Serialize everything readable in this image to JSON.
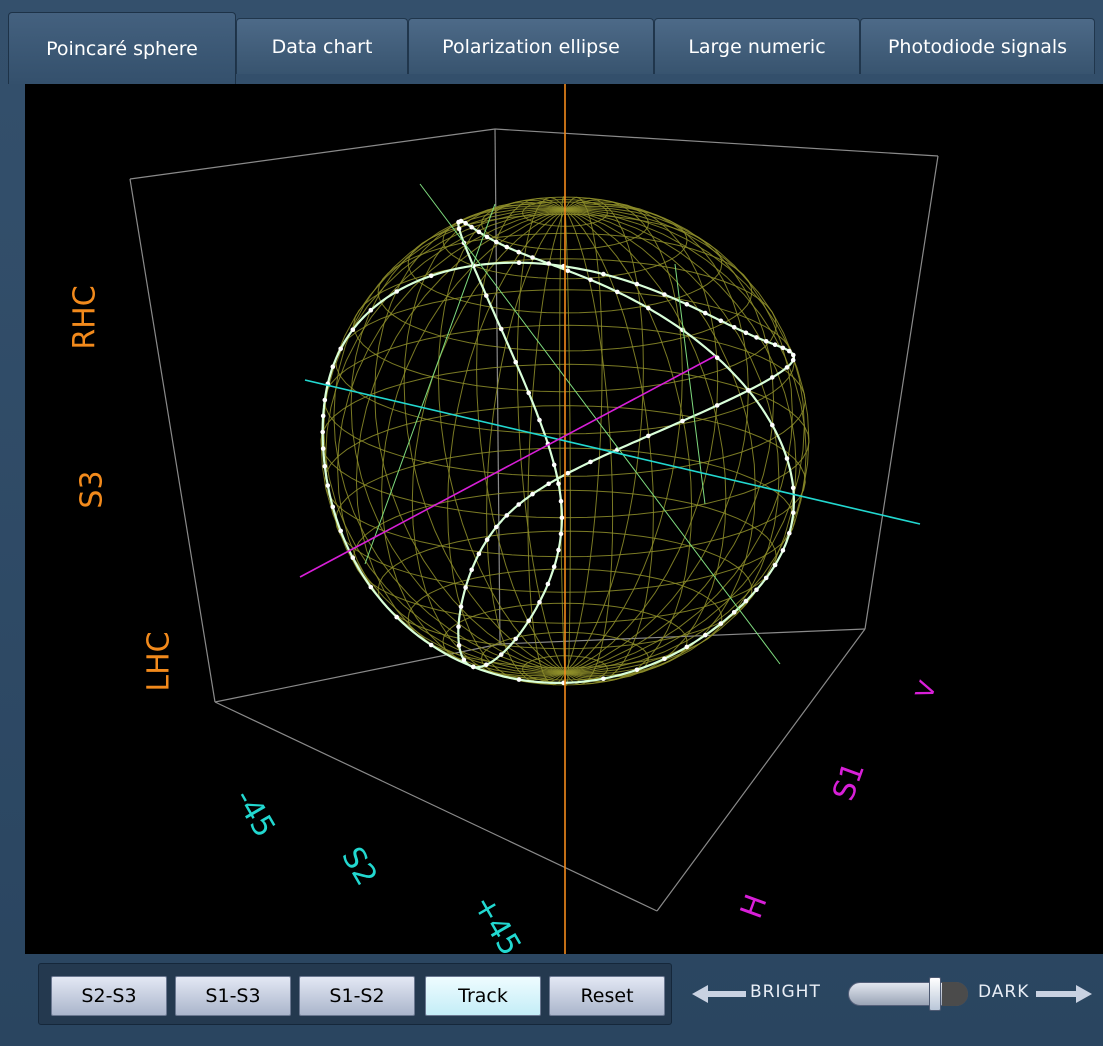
{
  "tabs": [
    {
      "label": "Poincaré sphere",
      "active": true
    },
    {
      "label": "Data chart",
      "active": false
    },
    {
      "label": "Polarization ellipse",
      "active": false
    },
    {
      "label": "Large numeric",
      "active": false
    },
    {
      "label": "Photodiode signals",
      "active": false
    }
  ],
  "plot": {
    "s3_axis": {
      "top": "RHC",
      "middle": "S3",
      "bottom": "LHC"
    },
    "s2_axis": {
      "first": "-45",
      "middle": "S2",
      "last": "+45"
    },
    "s1_axis": {
      "first": "V",
      "middle": "S1",
      "last": "H"
    },
    "colors": {
      "s3_axis": "#f28a1c",
      "s2_axis": "#22d8d0",
      "s1_axis": "#d81fd8",
      "sphere_wire": "#8f8f2a",
      "trace": "#d9ffd9",
      "box": "#8a8a8a"
    }
  },
  "buttons": [
    {
      "label": "S2-S3",
      "active": false
    },
    {
      "label": "S1-S3",
      "active": false
    },
    {
      "label": "S1-S2",
      "active": false
    },
    {
      "label": "Track",
      "active": true
    },
    {
      "label": "Reset",
      "active": false
    }
  ],
  "brightness": {
    "bright_label": "BRIGHT",
    "dark_label": "DARK",
    "level": 0.74,
    "icons": {
      "left": "arrow-left-icon",
      "right": "arrow-right-icon"
    }
  }
}
